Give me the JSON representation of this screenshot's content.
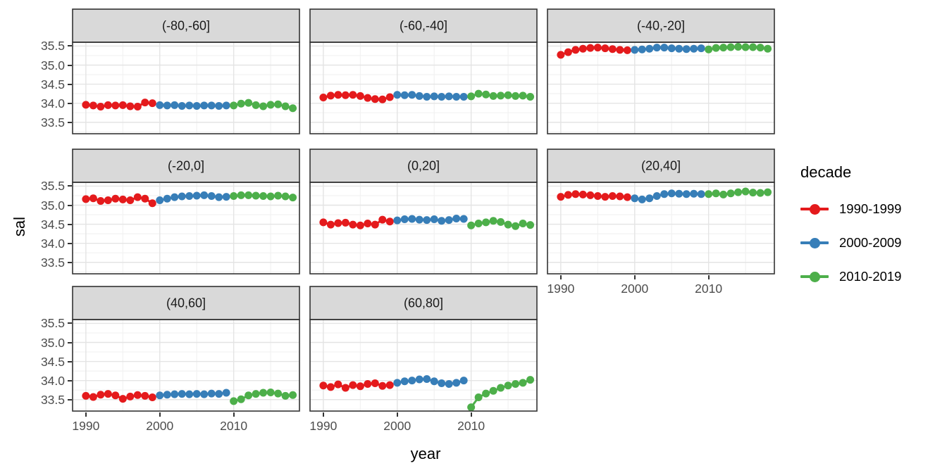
{
  "chart_data": {
    "type": "scatter",
    "title": "",
    "xlabel": "year",
    "ylabel": "sal",
    "x_ticks": [
      1990,
      2000,
      2010
    ],
    "x_minor_ticks": [
      1995,
      2005,
      2015
    ],
    "y_ticks": [
      35.5,
      35.0,
      34.5,
      34.0,
      33.5
    ],
    "y_minor_ticks": [
      35.25,
      34.75,
      34.25,
      33.75,
      33.25
    ],
    "x_domain": [
      1988.2,
      2018.9
    ],
    "y_domain": [
      33.2,
      35.6
    ],
    "grid": "major+minor",
    "geom": "line+point",
    "facet_layout": {
      "ncol": 3,
      "nrow": 3
    },
    "legend": {
      "title": "decade",
      "position": "right",
      "entries": [
        {
          "label": "1990-1999",
          "color": "#e41a1c"
        },
        {
          "label": "2000-2009",
          "color": "#377eb8"
        },
        {
          "label": "2010-2019",
          "color": "#4daf4a"
        }
      ]
    },
    "facets": [
      {
        "label": "(-80,-60]",
        "series": [
          {
            "decade": "1990-1999",
            "year_start": 1990,
            "sal": [
              33.96,
              33.94,
              33.91,
              33.95,
              33.94,
              33.95,
              33.92,
              33.91,
              34.02,
              34.0
            ]
          },
          {
            "decade": "2000-2009",
            "year_start": 2000,
            "sal": [
              33.95,
              33.94,
              33.95,
              33.93,
              33.94,
              33.93,
              33.94,
              33.94,
              33.93,
              33.94
            ]
          },
          {
            "decade": "2010-2019",
            "year_start": 2010,
            "sal": [
              33.94,
              33.99,
              34.01,
              33.95,
              33.92,
              33.96,
              33.97,
              33.92,
              33.87
            ]
          }
        ]
      },
      {
        "label": "(-60,-40]",
        "series": [
          {
            "decade": "1990-1999",
            "year_start": 1990,
            "sal": [
              34.15,
              34.2,
              34.22,
              34.21,
              34.22,
              34.19,
              34.14,
              34.11,
              34.1,
              34.16
            ]
          },
          {
            "decade": "2000-2009",
            "year_start": 2000,
            "sal": [
              34.22,
              34.21,
              34.22,
              34.19,
              34.17,
              34.18,
              34.17,
              34.18,
              34.17,
              34.17
            ]
          },
          {
            "decade": "2010-2019",
            "year_start": 2010,
            "sal": [
              34.18,
              34.25,
              34.23,
              34.19,
              34.2,
              34.21,
              34.19,
              34.2,
              34.17
            ]
          }
        ]
      },
      {
        "label": "(-40,-20]",
        "series": [
          {
            "decade": "1990-1999",
            "year_start": 1990,
            "sal": [
              35.27,
              35.34,
              35.4,
              35.43,
              35.45,
              35.46,
              35.44,
              35.42,
              35.4,
              35.39
            ]
          },
          {
            "decade": "2000-2009",
            "year_start": 2000,
            "sal": [
              35.4,
              35.41,
              35.43,
              35.46,
              35.46,
              35.44,
              35.43,
              35.42,
              35.43,
              35.44
            ]
          },
          {
            "decade": "2010-2019",
            "year_start": 2010,
            "sal": [
              35.41,
              35.45,
              35.46,
              35.47,
              35.48,
              35.47,
              35.47,
              35.46,
              35.43
            ]
          }
        ]
      },
      {
        "label": "(-20,0]",
        "series": [
          {
            "decade": "1990-1999",
            "year_start": 1990,
            "sal": [
              35.16,
              35.18,
              35.11,
              35.13,
              35.17,
              35.15,
              35.13,
              35.21,
              35.17,
              35.05
            ]
          },
          {
            "decade": "2000-2009",
            "year_start": 2000,
            "sal": [
              35.13,
              35.17,
              35.21,
              35.23,
              35.24,
              35.25,
              35.26,
              35.24,
              35.21,
              35.22
            ]
          },
          {
            "decade": "2010-2019",
            "year_start": 2010,
            "sal": [
              35.24,
              35.26,
              35.26,
              35.25,
              35.24,
              35.23,
              35.25,
              35.23,
              35.2
            ]
          }
        ]
      },
      {
        "label": "(0,20]",
        "series": [
          {
            "decade": "1990-1999",
            "year_start": 1990,
            "sal": [
              34.55,
              34.49,
              34.53,
              34.54,
              34.49,
              34.47,
              34.52,
              34.49,
              34.62,
              34.57
            ]
          },
          {
            "decade": "2000-2009",
            "year_start": 2000,
            "sal": [
              34.6,
              34.63,
              34.64,
              34.62,
              34.61,
              34.63,
              34.59,
              34.61,
              34.65,
              34.64
            ]
          },
          {
            "decade": "2010-2019",
            "year_start": 2010,
            "sal": [
              34.47,
              34.52,
              34.55,
              34.59,
              34.56,
              34.49,
              34.45,
              34.52,
              34.48
            ]
          }
        ]
      },
      {
        "label": "(20,40]",
        "series": [
          {
            "decade": "1990-1999",
            "year_start": 1990,
            "sal": [
              35.22,
              35.27,
              35.29,
              35.28,
              35.26,
              35.24,
              35.22,
              35.24,
              35.23,
              35.21
            ]
          },
          {
            "decade": "2000-2009",
            "year_start": 2000,
            "sal": [
              35.18,
              35.15,
              35.18,
              35.24,
              35.29,
              35.31,
              35.3,
              35.29,
              35.3,
              35.29
            ]
          },
          {
            "decade": "2010-2019",
            "year_start": 2010,
            "sal": [
              35.29,
              35.31,
              35.28,
              35.31,
              35.34,
              35.36,
              35.33,
              35.32,
              35.34
            ]
          }
        ]
      },
      {
        "label": "(40,60]",
        "series": [
          {
            "decade": "1990-1999",
            "year_start": 1990,
            "sal": [
              33.6,
              33.57,
              33.63,
              33.65,
              33.61,
              33.52,
              33.58,
              33.62,
              33.6,
              33.56
            ]
          },
          {
            "decade": "2000-2009",
            "year_start": 2000,
            "sal": [
              33.61,
              33.63,
              33.64,
              33.65,
              33.64,
              33.65,
              33.64,
              33.66,
              33.65,
              33.68
            ]
          },
          {
            "decade": "2010-2019",
            "year_start": 2010,
            "sal": [
              33.46,
              33.51,
              33.61,
              33.65,
              33.68,
              33.69,
              33.66,
              33.6,
              33.62
            ]
          }
        ]
      },
      {
        "label": "(60,80]",
        "series": [
          {
            "decade": "1990-1999",
            "year_start": 1990,
            "sal": [
              33.87,
              33.83,
              33.9,
              33.81,
              33.88,
              33.85,
              33.91,
              33.93,
              33.86,
              33.88
            ]
          },
          {
            "decade": "2000-2009",
            "year_start": 2000,
            "sal": [
              33.94,
              33.98,
              34.0,
              34.03,
              34.04,
              33.98,
              33.93,
              33.91,
              33.94,
              34.0
            ]
          },
          {
            "decade": "2010-2019",
            "year_start": 2010,
            "sal": [
              33.3,
              33.56,
              33.66,
              33.73,
              33.81,
              33.87,
              33.91,
              33.94,
              34.02
            ]
          }
        ]
      }
    ]
  },
  "theme": {
    "strip_fill": "#d9d9d9",
    "panel_border": "#333333",
    "panel_fill": "#ffffff",
    "grid_major": "#e4e4e4",
    "grid_minor": "#f2f2f2",
    "tick_color": "#333333",
    "tick_label_color": "#4d4d4d"
  }
}
